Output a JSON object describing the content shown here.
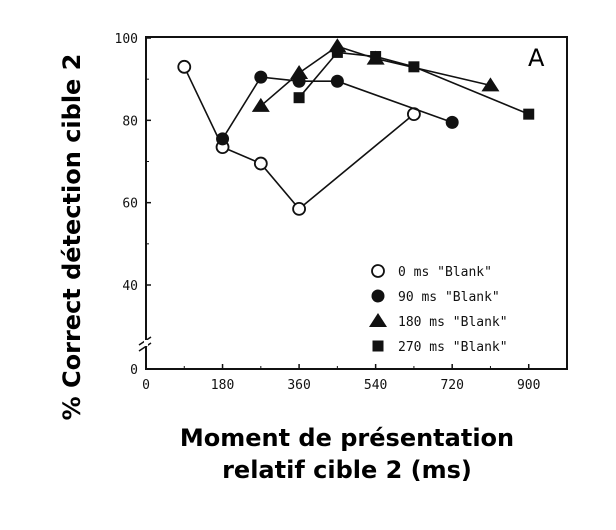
{
  "chart_data": {
    "type": "line",
    "panel_label": "A",
    "xlabel": [
      "Moment de présentation",
      "relatif cible 2 (ms)"
    ],
    "ylabel": "% Correct détection cible 2",
    "xlim": [
      0,
      990
    ],
    "ylim": [
      0,
      100
    ],
    "y_axis_break": true,
    "x_ticks": [
      0,
      180,
      360,
      540,
      720,
      900
    ],
    "y_ticks": [
      0,
      40,
      60,
      80,
      100
    ],
    "legend_position": "lower-right",
    "series": [
      {
        "name": "0 ms \"Blank\"",
        "marker": "open-circle",
        "points": [
          [
            90,
            93
          ],
          [
            180,
            73.5
          ],
          [
            270,
            69.5
          ],
          [
            360,
            58.5
          ],
          [
            630,
            81.5
          ]
        ]
      },
      {
        "name": "90 ms \"Blank\"",
        "marker": "filled-circle",
        "points": [
          [
            180,
            75.5
          ],
          [
            270,
            90.5
          ],
          [
            360,
            89.5
          ],
          [
            450,
            89.5
          ],
          [
            720,
            79.5
          ]
        ]
      },
      {
        "name": "180 ms \"Blank\"",
        "marker": "filled-triangle",
        "points": [
          [
            270,
            83.5
          ],
          [
            360,
            91.5
          ],
          [
            450,
            98
          ],
          [
            540,
            95
          ],
          [
            810,
            88.5
          ]
        ]
      },
      {
        "name": "270 ms \"Blank\"",
        "marker": "filled-square",
        "points": [
          [
            360,
            85.5
          ],
          [
            450,
            96.5
          ],
          [
            540,
            95.5
          ],
          [
            630,
            93
          ],
          [
            900,
            81.5
          ]
        ]
      }
    ]
  }
}
